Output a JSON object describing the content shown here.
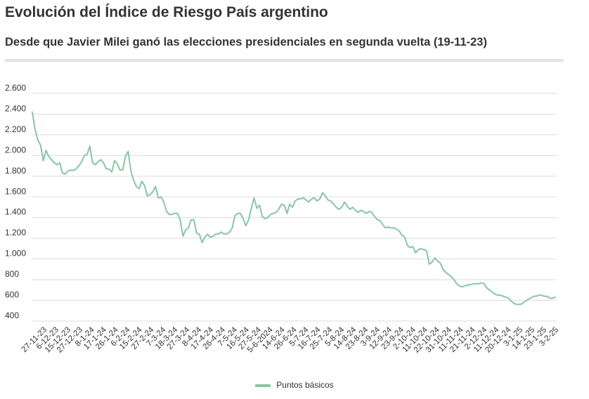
{
  "header": {
    "title": "Evolución del Índice de Riesgo País argentino",
    "subtitle": "Desde que Javier Milei ganó las elecciones presidenciales en segunda vuelta (19-11-23)"
  },
  "chart_data": {
    "type": "line",
    "ylim": [
      400,
      2600
    ],
    "y_ticks": [
      {
        "value": 2600,
        "label": "2.600"
      },
      {
        "value": 2400,
        "label": "2.400"
      },
      {
        "value": 2200,
        "label": "2.200"
      },
      {
        "value": 2000,
        "label": "2.000"
      },
      {
        "value": 1800,
        "label": "1.800"
      },
      {
        "value": 1600,
        "label": "1.600"
      },
      {
        "value": 1400,
        "label": "1.400"
      },
      {
        "value": 1200,
        "label": "1.200"
      },
      {
        "value": 1000,
        "label": "1.000"
      },
      {
        "value": 800,
        "label": "800"
      },
      {
        "value": 600,
        "label": "600"
      },
      {
        "value": 400,
        "label": "400"
      }
    ],
    "x_tick_labels": [
      "27-11-23",
      "6-12-23",
      "15-12-23",
      "27-12-23",
      "8-1-24",
      "17-1-24",
      "26-1-24",
      "6-2-24",
      "15-2-24",
      "27-2-24",
      "7-3-24",
      "18-3-24",
      "27-3-24",
      "8-4-24",
      "17-4-24",
      "26-4-24",
      "7-5-24",
      "16-5-24",
      "27-5-24",
      "5-6-2024",
      "14-6-24",
      "26-6-24",
      "5-7-24",
      "16-7-24",
      "25-7-24",
      "5-8-24",
      "14-8-24",
      "23-8-24",
      "3-9-24",
      "12-9-24",
      "23-9-24",
      "2-10-24",
      "11-10-24",
      "22-10-24",
      "31-10-24",
      "11-11-24",
      "21-11-24",
      "2-12-24",
      "11-12-24",
      "20-12-24",
      "3-1-25",
      "14-1-25",
      "23-1-25",
      "3-2-25"
    ],
    "grid": true,
    "line_color": "#8bc5a5",
    "series": [
      {
        "name": "Puntos básicos",
        "values": [
          2420,
          2250,
          2150,
          2100,
          1950,
          2050,
          1990,
          1960,
          1930,
          1910,
          1930,
          1830,
          1820,
          1850,
          1860,
          1855,
          1870,
          1900,
          1940,
          2000,
          2010,
          2090,
          1930,
          1910,
          1940,
          1960,
          1930,
          1870,
          1870,
          1840,
          1950,
          1920,
          1860,
          1860,
          1990,
          2040,
          1850,
          1760,
          1700,
          1680,
          1750,
          1710,
          1610,
          1620,
          1650,
          1700,
          1590,
          1600,
          1550,
          1460,
          1430,
          1430,
          1440,
          1440,
          1380,
          1220,
          1280,
          1300,
          1380,
          1380,
          1250,
          1240,
          1160,
          1210,
          1240,
          1210,
          1220,
          1240,
          1240,
          1260,
          1240,
          1240,
          1260,
          1300,
          1420,
          1440,
          1440,
          1390,
          1320,
          1380,
          1490,
          1590,
          1490,
          1520,
          1410,
          1390,
          1400,
          1430,
          1440,
          1450,
          1480,
          1530,
          1520,
          1440,
          1530,
          1500,
          1560,
          1580,
          1580,
          1590,
          1570,
          1550,
          1580,
          1590,
          1560,
          1580,
          1640,
          1610,
          1570,
          1560,
          1530,
          1500,
          1480,
          1500,
          1550,
          1510,
          1480,
          1500,
          1470,
          1450,
          1470,
          1460,
          1440,
          1460,
          1450,
          1410,
          1380,
          1370,
          1330,
          1300,
          1310,
          1300,
          1300,
          1290,
          1270,
          1230,
          1210,
          1130,
          1110,
          1120,
          1060,
          1090,
          1100,
          1090,
          1080,
          950,
          970,
          1010,
          980,
          960,
          900,
          870,
          850,
          830,
          800,
          760,
          740,
          730,
          740,
          750,
          750,
          760,
          760,
          760,
          770,
          760,
          720,
          700,
          680,
          660,
          650,
          650,
          640,
          630,
          620,
          590,
          570,
          560,
          560,
          570,
          590,
          610,
          620,
          640,
          640,
          650,
          650,
          640,
          640,
          620,
          620,
          630
        ]
      }
    ]
  },
  "legend": {
    "label": "Puntos básicos"
  }
}
